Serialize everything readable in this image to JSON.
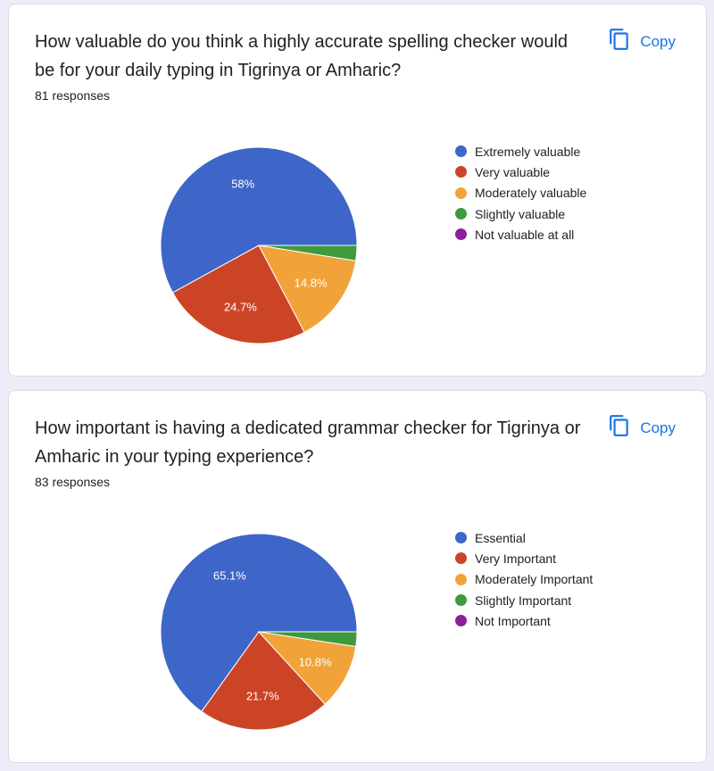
{
  "palette": [
    "#3e65c8",
    "#cc4426",
    "#f1a33a",
    "#3f9a3c",
    "#8e1e9b"
  ],
  "copy_label": "Copy",
  "cards": [
    {
      "title": "How valuable do you think a highly accurate spelling checker would be for your daily typing in Tigrinya or Amharic?",
      "responses": "81 responses"
    },
    {
      "title": "How important is having a dedicated grammar checker for Tigrinya or Amharic in your typing experience?",
      "responses": "83 responses"
    }
  ],
  "chart_data": [
    {
      "type": "pie",
      "categories": [
        "Extremely valuable",
        "Very valuable",
        "Moderately valuable",
        "Slightly valuable",
        "Not valuable at all"
      ],
      "values": [
        58,
        24.7,
        14.8,
        2.5,
        0
      ],
      "data_labels": [
        "58%",
        "24.7%",
        "14.8%",
        "",
        ""
      ],
      "legend": "right"
    },
    {
      "type": "pie",
      "categories": [
        "Essential",
        "Very Important",
        "Moderately Important",
        "Slightly Important",
        "Not Important"
      ],
      "values": [
        65.1,
        21.7,
        10.8,
        2.4,
        0
      ],
      "data_labels": [
        "65.1%",
        "21.7%",
        "10.8%",
        "",
        ""
      ],
      "legend": "right"
    }
  ]
}
